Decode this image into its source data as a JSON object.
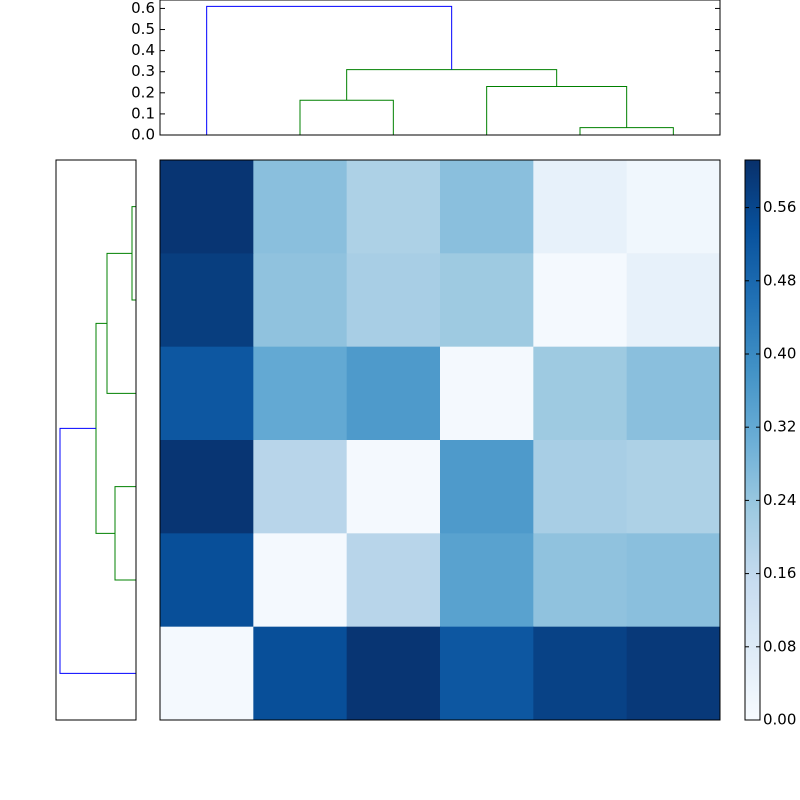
{
  "chart_data": [
    {
      "type": "dendrogram",
      "orientation": "top",
      "xlim": [
        0,
        60
      ],
      "ylim": [
        0,
        0.64
      ],
      "yticks": [
        {
          "value": 0,
          "label": "0.0"
        },
        {
          "value": 0.1,
          "label": "0.1"
        },
        {
          "value": 0.2,
          "label": "0.2"
        },
        {
          "value": 0.3,
          "label": "0.3"
        },
        {
          "value": 0.4,
          "label": "0.4"
        },
        {
          "value": 0.5,
          "label": "0.5"
        },
        {
          "value": 0.6,
          "label": "0.6"
        }
      ],
      "links": [
        {
          "icoord": [
            45,
            45,
            55,
            55
          ],
          "dcoord": [
            0,
            0.035,
            0.035,
            0
          ],
          "color": "#008000"
        },
        {
          "icoord": [
            15,
            15,
            25,
            25
          ],
          "dcoord": [
            0,
            0.165,
            0.165,
            0
          ],
          "color": "#008000"
        },
        {
          "icoord": [
            35,
            35,
            50,
            50
          ],
          "dcoord": [
            0,
            0.23,
            0.23,
            0.035
          ],
          "color": "#008000"
        },
        {
          "icoord": [
            20,
            20,
            42.5,
            42.5
          ],
          "dcoord": [
            0.165,
            0.31,
            0.31,
            0.23
          ],
          "color": "#008000"
        },
        {
          "icoord": [
            5,
            5,
            31.25,
            31.25
          ],
          "dcoord": [
            0,
            0.61,
            0.61,
            0.31
          ],
          "color": "#0000ff"
        }
      ]
    },
    {
      "type": "dendrogram",
      "orientation": "left",
      "ylim": [
        0,
        60
      ],
      "xlim": [
        0,
        0.64
      ],
      "links": [
        {
          "icoord": [
            5,
            5,
            15,
            15
          ],
          "dcoord": [
            0,
            0.032,
            0.032,
            0
          ],
          "color": "#008000"
        },
        {
          "icoord": [
            10,
            10,
            25,
            25
          ],
          "dcoord": [
            0.032,
            0.232,
            0.232,
            0
          ],
          "color": "#008000"
        },
        {
          "icoord": [
            35,
            35,
            45,
            45
          ],
          "dcoord": [
            0,
            0.168,
            0.168,
            0
          ],
          "color": "#008000"
        },
        {
          "icoord": [
            17.5,
            17.5,
            40,
            40
          ],
          "dcoord": [
            0.232,
            0.32,
            0.32,
            0.168
          ],
          "color": "#008000"
        },
        {
          "icoord": [
            28.75,
            28.75,
            55,
            55
          ],
          "dcoord": [
            0.32,
            0.608,
            0.608,
            0
          ],
          "color": "#0000ff"
        }
      ]
    },
    {
      "type": "heatmap",
      "colormap": "Blues",
      "z": [
        [
          0.6,
          0.26,
          0.2,
          0.26,
          0.05,
          0.02
        ],
        [
          0.58,
          0.25,
          0.21,
          0.23,
          0.01,
          0.05
        ],
        [
          0.52,
          0.32,
          0.36,
          0.01,
          0.23,
          0.26
        ],
        [
          0.6,
          0.18,
          0.01,
          0.36,
          0.21,
          0.2
        ],
        [
          0.54,
          0.01,
          0.18,
          0.34,
          0.25,
          0.26
        ],
        [
          0.01,
          0.54,
          0.6,
          0.52,
          0.57,
          0.59
        ]
      ],
      "clim": [
        0,
        0.612
      ],
      "cticks": [
        {
          "value": 0,
          "label": "0.00"
        },
        {
          "value": 0.08,
          "label": "0.08"
        },
        {
          "value": 0.16,
          "label": "0.16"
        },
        {
          "value": 0.24,
          "label": "0.24"
        },
        {
          "value": 0.32,
          "label": "0.32"
        },
        {
          "value": 0.4,
          "label": "0.40"
        },
        {
          "value": 0.48,
          "label": "0.48"
        },
        {
          "value": 0.56,
          "label": "0.56"
        }
      ]
    }
  ]
}
